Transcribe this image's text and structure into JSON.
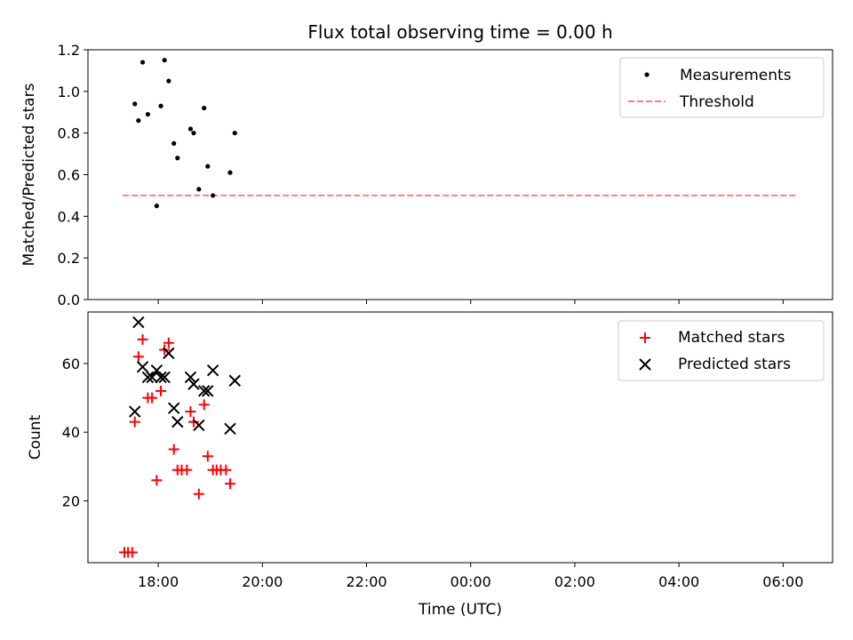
{
  "chart_data": [
    {
      "type": "scatter",
      "title": "Flux total observing time = 0.00 h",
      "xlabel": "",
      "ylabel": "Matched/Predicted stars",
      "ylim": [
        0,
        1.2
      ],
      "yticks": [
        0,
        0.2,
        0.4,
        0.6,
        0.8,
        1.0,
        1.2
      ],
      "ytick_labels": [
        "0.0",
        "0.2",
        "0.4",
        "0.6",
        "0.8",
        "1.0",
        "1.2"
      ],
      "xlim_hours": [
        16.65,
        30.95
      ],
      "legend_position": "top-right",
      "series": [
        {
          "name": "Measurements",
          "marker": "dot",
          "color": "#000000",
          "x": [
            17.55,
            17.62,
            17.7,
            17.8,
            17.97,
            18.05,
            18.12,
            18.2,
            18.3,
            18.37,
            18.62,
            18.68,
            18.78,
            18.88,
            18.95,
            19.05,
            19.38,
            19.47
          ],
          "y": [
            0.94,
            0.86,
            1.14,
            0.89,
            0.45,
            0.93,
            1.15,
            1.05,
            0.75,
            0.68,
            0.82,
            0.8,
            0.53,
            0.92,
            0.64,
            0.5,
            0.61,
            0.8
          ]
        },
        {
          "name": "Threshold",
          "line": "dashed",
          "color": "#ff7f7f",
          "x": [
            17.32,
            30.27
          ],
          "y": [
            0.5,
            0.5
          ]
        }
      ]
    },
    {
      "type": "scatter",
      "xlabel": "Time (UTC)",
      "ylabel": "Count",
      "ylim": [
        2,
        75
      ],
      "yticks": [
        20,
        40,
        60
      ],
      "ytick_labels": [
        "20",
        "40",
        "60"
      ],
      "xlim_hours": [
        16.65,
        30.95
      ],
      "xticks_hours": [
        18,
        20,
        22,
        24,
        26,
        28,
        30
      ],
      "xtick_labels": [
        "18:00",
        "20:00",
        "22:00",
        "00:00",
        "02:00",
        "04:00",
        "06:00"
      ],
      "legend_position": "top-right",
      "series": [
        {
          "name": "Matched stars",
          "marker": "plus",
          "color": "#ff0000",
          "x": [
            17.35,
            17.42,
            17.5,
            17.55,
            17.62,
            17.7,
            17.8,
            17.88,
            17.97,
            18.05,
            18.12,
            18.2,
            18.3,
            18.37,
            18.45,
            18.55,
            18.62,
            18.68,
            18.78,
            18.88,
            18.95,
            19.05,
            19.12,
            19.2,
            19.3,
            19.38
          ],
          "y": [
            5,
            5,
            5,
            43,
            62,
            67,
            50,
            50,
            26,
            52,
            64,
            66,
            35,
            29,
            29,
            29,
            46,
            43,
            22,
            48,
            33,
            29,
            29,
            29,
            29,
            25
          ]
        },
        {
          "name": "Predicted stars",
          "marker": "x",
          "color": "#000000",
          "x": [
            17.55,
            17.62,
            17.7,
            17.8,
            17.88,
            17.97,
            18.05,
            18.12,
            18.2,
            18.3,
            18.37,
            18.62,
            18.68,
            18.78,
            18.88,
            18.95,
            19.05,
            19.38,
            19.47
          ],
          "y": [
            46,
            72,
            59,
            56,
            56,
            58,
            56,
            56,
            63,
            47,
            43,
            56,
            54,
            42,
            52,
            52,
            58,
            41,
            55
          ]
        }
      ]
    }
  ]
}
